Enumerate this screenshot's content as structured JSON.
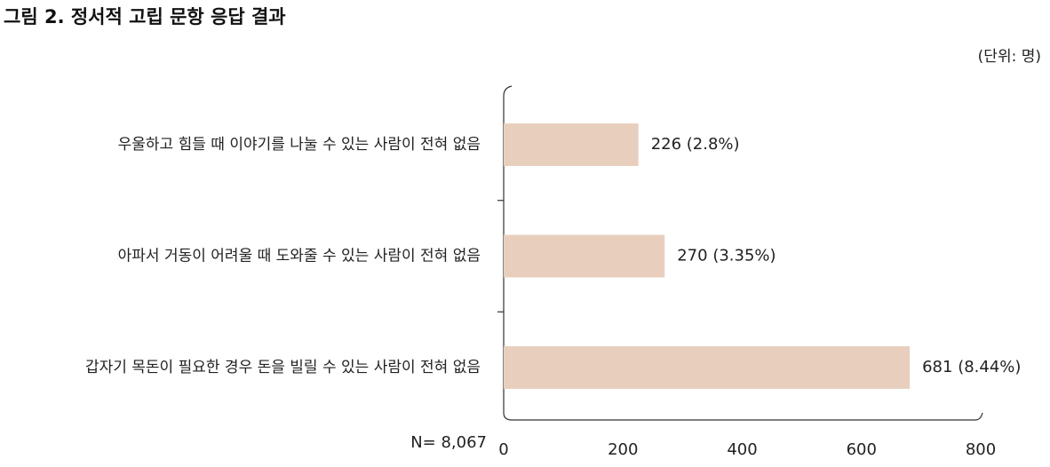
{
  "chart_data": {
    "type": "bar",
    "orientation": "horizontal",
    "title": "그림 2. 정서적 고립 문항 응답 결과",
    "unit": "(단위: 명)",
    "note": "N= 8,067",
    "categories": [
      "우울하고 힘들 때 이야기를 나눌 수 있는 사람이 전혀 없음",
      "아파서 거동이 어려울 때 도와줄 수 있는 사람이 전혀 없음",
      "갑자기 목돈이 필요한 경우 돈을 빌릴 수 있는 사람이 전혀 없음"
    ],
    "values": [
      226,
      270,
      681
    ],
    "value_labels": [
      "226 (2.8%)",
      "270 (3.35%)",
      "681 (8.44%)"
    ],
    "color": "#e8cfbd",
    "xlim": [
      0,
      800
    ],
    "xticks": [
      0,
      200,
      400,
      600,
      800
    ]
  }
}
